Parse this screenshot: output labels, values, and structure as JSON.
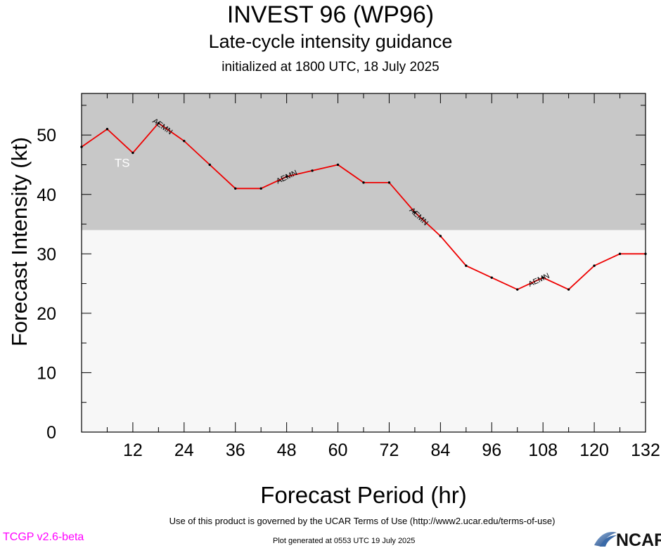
{
  "header": {
    "title": "INVEST 96 (WP96)",
    "subtitle": "Late-cycle intensity guidance",
    "initialized": "initialized at 1800 UTC, 18 July 2025"
  },
  "footer": {
    "terms": "Use of this product is governed by the UCAR Terms of Use (http://www2.ucar.edu/terms-of-use)",
    "generated": "Plot generated at 0553 UTC   19 July 2025",
    "version": "TCGP v2.6-beta",
    "logo_text": "NCAR"
  },
  "chart_data": {
    "type": "line",
    "xlabel": "Forecast Period (hr)",
    "ylabel": "Forecast Intensity (kt)",
    "xlim": [
      0,
      132
    ],
    "ylim": [
      0,
      57
    ],
    "x_ticks": [
      12,
      24,
      36,
      48,
      60,
      72,
      84,
      96,
      108,
      120,
      132
    ],
    "y_ticks": [
      0,
      10,
      20,
      30,
      40,
      50
    ],
    "bands": [
      {
        "label": "TS",
        "from": 34,
        "to": 57,
        "color": "#c8c8c8"
      },
      {
        "label": "",
        "from": 0,
        "to": 34,
        "color": "#f7f7f7"
      }
    ],
    "series": [
      {
        "name": "AEMN",
        "color": "#ee0000",
        "x": [
          0,
          6,
          12,
          18,
          24,
          30,
          36,
          42,
          48,
          54,
          60,
          66,
          72,
          78,
          84,
          90,
          96,
          102,
          108,
          114,
          120,
          126,
          132
        ],
        "y": [
          48,
          51,
          47,
          52,
          49,
          45,
          41,
          41,
          43,
          44,
          45,
          42,
          42,
          37,
          33,
          28,
          26,
          24,
          26,
          24,
          28,
          30,
          30
        ],
        "label_positions": [
          19,
          48,
          79,
          107
        ]
      }
    ]
  }
}
